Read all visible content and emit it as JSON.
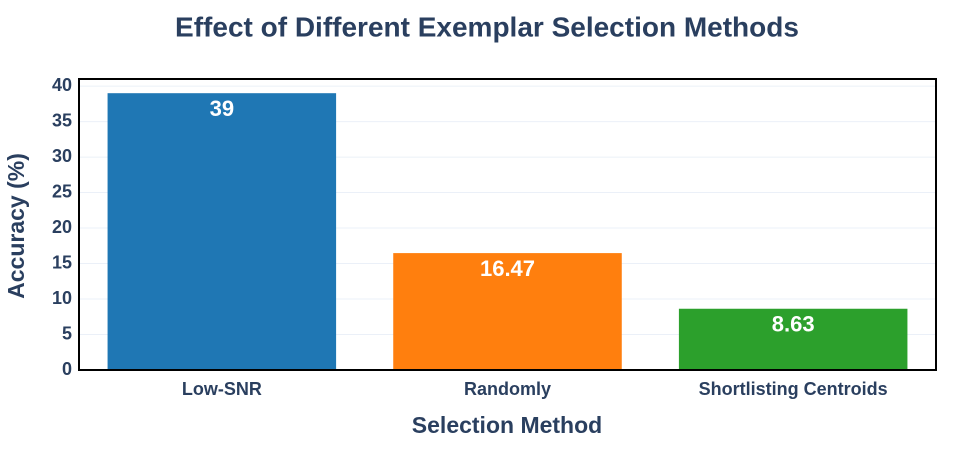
{
  "chart_data": {
    "type": "bar",
    "title": "Effect of Different Exemplar Selection Methods",
    "x_label": "Selection Method",
    "y_label": "Accuracy (%)",
    "categories": [
      "Low-SNR",
      "Randomly",
      "Shortlisting Centroids"
    ],
    "values": [
      39,
      16.47,
      8.63
    ],
    "colors": [
      "#1f77b4",
      "#ff7f0e",
      "#2ca02c"
    ],
    "ylim": [
      0,
      41
    ],
    "yticks": [
      0,
      5,
      10,
      15,
      20,
      25,
      30,
      35,
      40
    ],
    "grid": true
  }
}
